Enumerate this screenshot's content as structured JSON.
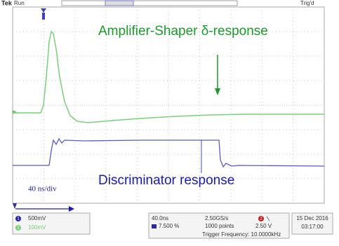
{
  "top_bar": {
    "brand": "Tek",
    "status": "Run",
    "trigger_status": "Trig'd"
  },
  "annotations": {
    "amplifier": "Amplifier-Shaper δ-response",
    "discriminator": "Discriminator response",
    "timebase": "40 ns/div"
  },
  "channels": [
    {
      "number": "1",
      "scale": "500mV"
    },
    {
      "number": "2",
      "scale": "100mV"
    }
  ],
  "horizontal": {
    "scale": "40.0ns",
    "position": "7.500 %",
    "sample_rate": "2.50GS/s",
    "record_length": "1000 points"
  },
  "trigger": {
    "source": "2",
    "level": "2.50 V",
    "frequency": "Trigger Frequency: 10.0000kHz"
  },
  "datetime": {
    "date": "15 Dec 2016",
    "time": "03:17:00"
  }
}
